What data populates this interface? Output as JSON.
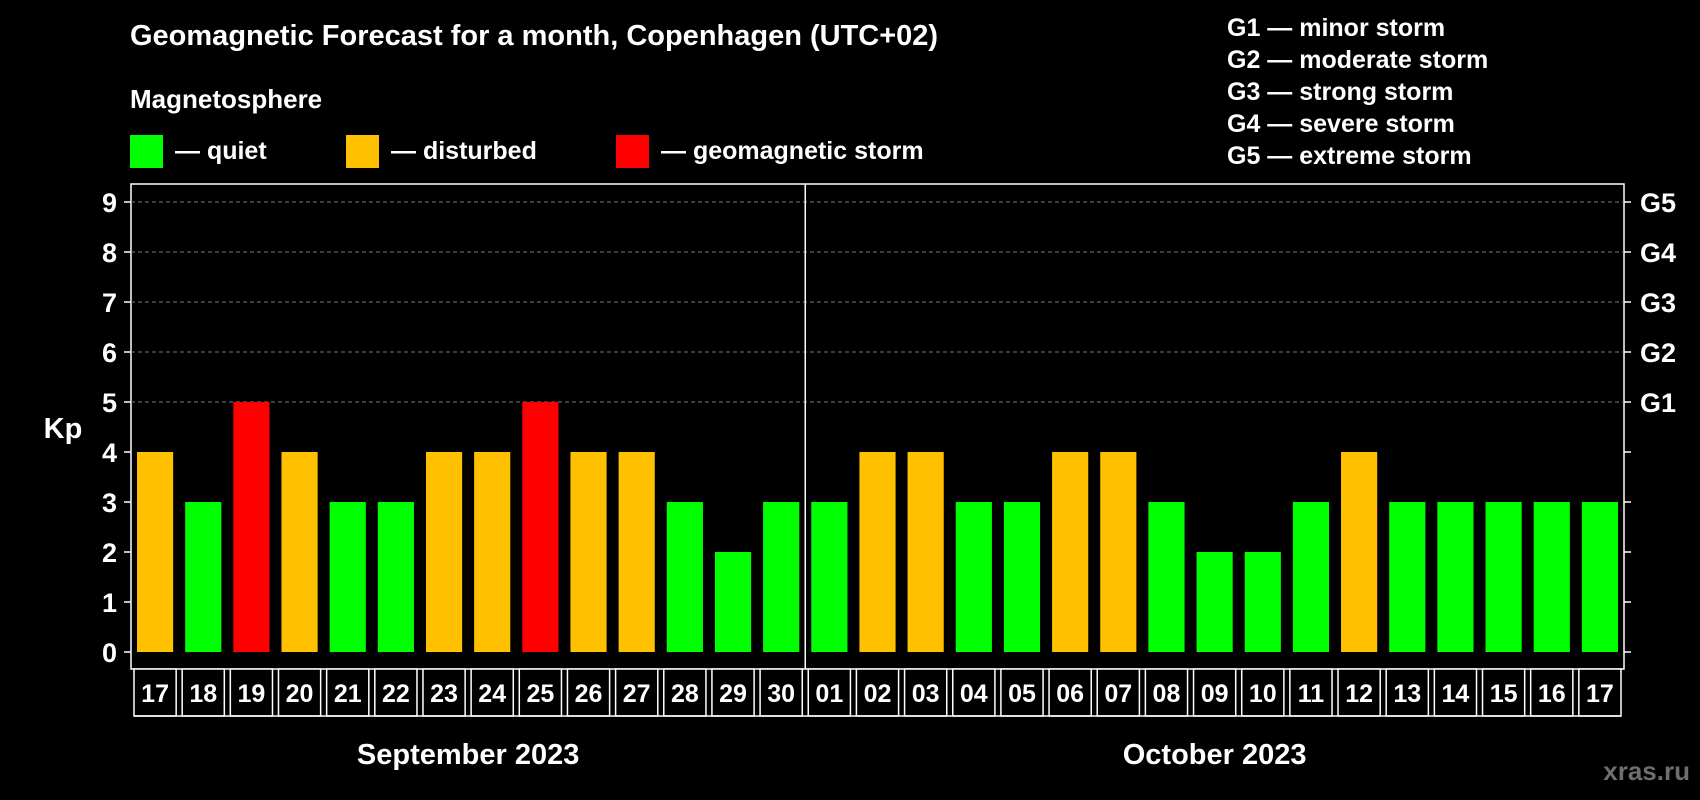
{
  "title": "Geomagnetic Forecast for a month, Copenhagen (UTC+02)",
  "subtitle": "Magnetosphere",
  "legend": [
    {
      "label": "— quiet",
      "color": "#00ff00"
    },
    {
      "label": "— disturbed",
      "color": "#ffc000"
    },
    {
      "label": "— geomagnetic storm",
      "color": "#ff0000"
    }
  ],
  "storm_scale": [
    "G1 — minor storm",
    "G2 — moderate storm",
    "G3 — strong storm",
    "G4 — severe storm",
    "G5 — extreme storm"
  ],
  "watermark": "xras.ru",
  "chart_data": {
    "type": "bar",
    "title": "Geomagnetic Forecast for a month, Copenhagen (UTC+02)",
    "ylabel": "Kp",
    "xlabel": "",
    "ylim": [
      0,
      9
    ],
    "yticks": [
      0,
      1,
      2,
      3,
      4,
      5,
      6,
      7,
      8,
      9
    ],
    "right_axis_labels": [
      {
        "value": 5,
        "label": "G1"
      },
      {
        "value": 6,
        "label": "G2"
      },
      {
        "value": 7,
        "label": "G3"
      },
      {
        "value": 8,
        "label": "G4"
      },
      {
        "value": 9,
        "label": "G5"
      }
    ],
    "grid": "dashed horizontal at Kp 5-9",
    "categories": [
      "17",
      "18",
      "19",
      "20",
      "21",
      "22",
      "23",
      "24",
      "25",
      "26",
      "27",
      "28",
      "29",
      "30",
      "01",
      "02",
      "03",
      "04",
      "05",
      "06",
      "07",
      "08",
      "09",
      "10",
      "11",
      "12",
      "13",
      "14",
      "15",
      "16",
      "17"
    ],
    "values": [
      4,
      3,
      5,
      4,
      3,
      3,
      4,
      4,
      5,
      4,
      4,
      3,
      2,
      3,
      3,
      4,
      4,
      3,
      3,
      4,
      4,
      3,
      2,
      2,
      3,
      4,
      3,
      3,
      3,
      3,
      3
    ],
    "colors": {
      "quiet": "#00ff00",
      "disturbed": "#ffc000",
      "storm": "#ff0000"
    },
    "months": [
      {
        "label": "September 2023",
        "start_index": 0,
        "end_index": 13
      },
      {
        "label": "October 2023",
        "start_index": 14,
        "end_index": 30
      }
    ]
  }
}
